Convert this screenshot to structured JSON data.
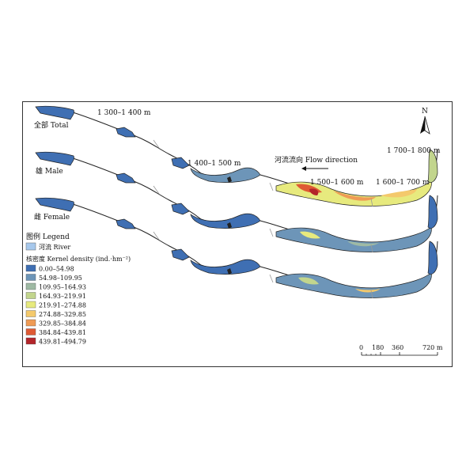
{
  "map": {
    "rows": [
      {
        "label": "全部 Total"
      },
      {
        "label": "雄 Male"
      },
      {
        "label": "雌 Female"
      }
    ],
    "segments": [
      "1 300–1 400 m",
      "1 400–1 500 m",
      "1 500–1 600 m",
      "1 600–1 700 m",
      "1 700–1 800 m"
    ],
    "flow_label": "河流流向 Flow direction",
    "north_label": "N",
    "legend": {
      "title": "图例 Legend",
      "river_label": "河流 River",
      "river_color": "#a7c8ec",
      "density_title": "核密度 Kernel density (ind.·hm⁻²)",
      "classes": [
        {
          "label": "0.00–54.98",
          "color": "#3f6fb3"
        },
        {
          "label": "54.98–109.95",
          "color": "#6d95b8"
        },
        {
          "label": "109.95–164.93",
          "color": "#9fbaa4"
        },
        {
          "label": "164.93–219.91",
          "color": "#c2d58d"
        },
        {
          "label": "219.91–274.88",
          "color": "#e7ea7e"
        },
        {
          "label": "274.88–329.85",
          "color": "#f4c96c"
        },
        {
          "label": "329.85–384.84",
          "color": "#ef9b55"
        },
        {
          "label": "384.84–439.81",
          "color": "#df5a34"
        },
        {
          "label": "439.81–494.79",
          "color": "#b3252a"
        }
      ]
    },
    "scale": {
      "ticks": [
        "0",
        "180",
        "360",
        "720 m"
      ]
    }
  }
}
